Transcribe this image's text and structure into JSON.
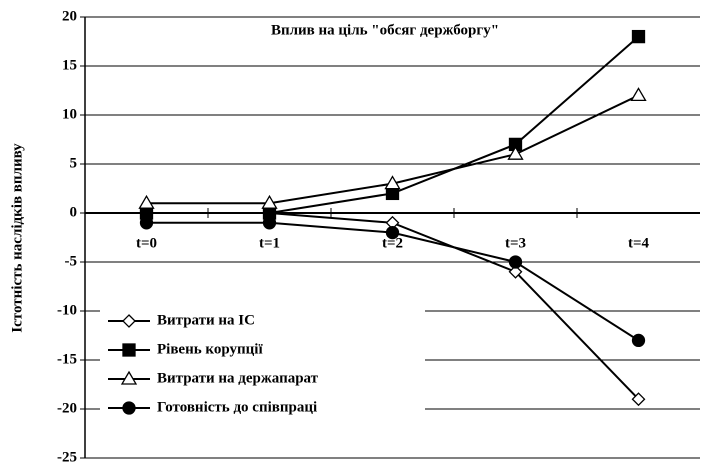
{
  "chart_data": {
    "type": "line",
    "title": "Вплив на ціль \"обсяг держборгу\"",
    "y_label": "Істотність наслідків впливу",
    "categories": [
      "t=0",
      "t=1",
      "t=2",
      "t=3",
      "t=4"
    ],
    "series": [
      {
        "name": "Витрати на ІС",
        "color": "#000000",
        "marker": "diamond",
        "marker_fill": "#ffffff",
        "values": [
          0,
          0,
          -1,
          -6,
          -19
        ]
      },
      {
        "name": "Рівень корупції",
        "color": "#000000",
        "marker": "square",
        "marker_fill": "#000000",
        "values": [
          0,
          0,
          2,
          7,
          18
        ]
      },
      {
        "name": "Витрати на держапарат",
        "color": "#000000",
        "marker": "triangle",
        "marker_fill": "#ffffff",
        "values": [
          1,
          1,
          3,
          6,
          12
        ]
      },
      {
        "name": "Готовність до співпраці",
        "color": "#000000",
        "marker": "circle",
        "marker_fill": "#000000",
        "values": [
          -1,
          -1,
          -2,
          -5,
          -13
        ]
      }
    ],
    "ylim": [
      -25,
      20
    ],
    "yticks": [
      -25,
      -20,
      -15,
      -10,
      -5,
      0,
      5,
      10,
      15,
      20
    ],
    "grid": true,
    "legend": "lower-left"
  }
}
